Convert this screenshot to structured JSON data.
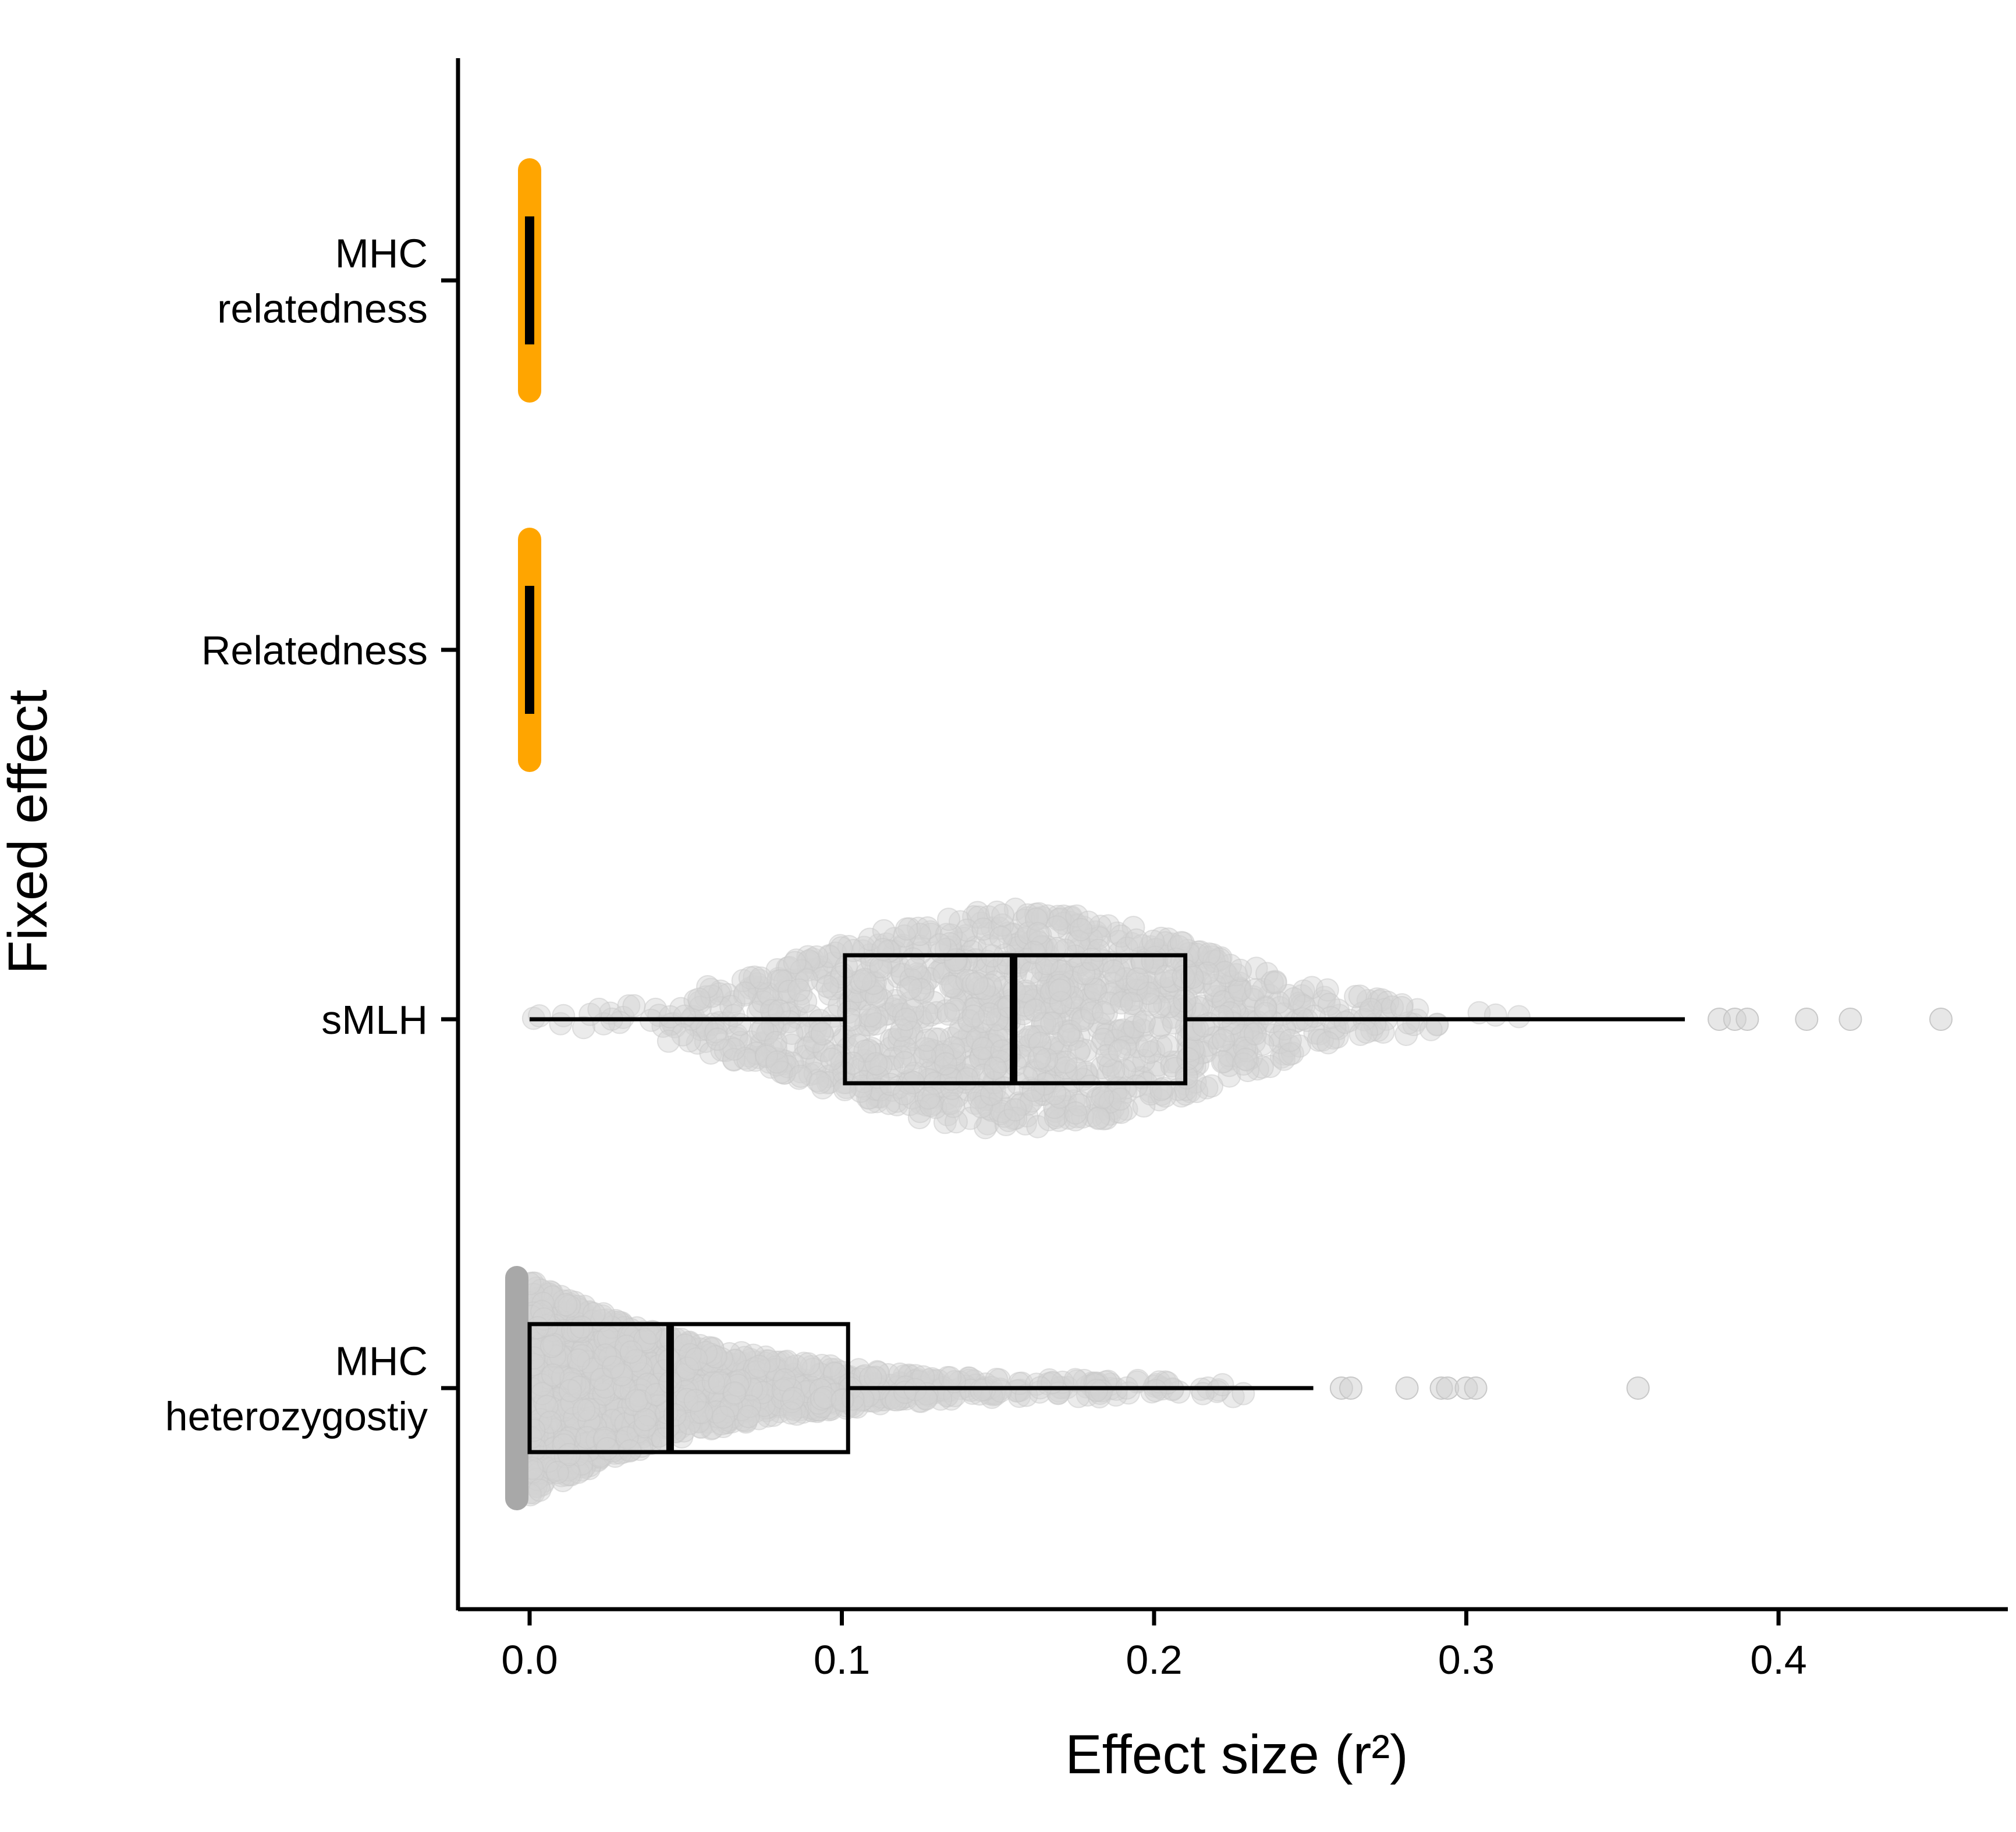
{
  "chart_data": {
    "type": "boxplot",
    "xlabel": "Effect size (r²)",
    "ylabel": "Fixed effect",
    "xlim": [
      -0.022,
      0.472
    ],
    "xticks": [
      "0.0",
      "0.1",
      "0.2",
      "0.3",
      "0.4"
    ],
    "grid": false,
    "categories": [
      {
        "label": [
          "MHC",
          "relatedness"
        ],
        "kind": "zero",
        "color": "#FFA500",
        "range": [
          0,
          0
        ]
      },
      {
        "label": [
          "Relatedness"
        ],
        "kind": "zero",
        "color": "#FFA500",
        "range": [
          0,
          0
        ]
      },
      {
        "label": [
          "sMLH"
        ],
        "kind": "box",
        "box": {
          "whisker_low": 0.0,
          "q1": 0.101,
          "median": 0.155,
          "q3": 0.21,
          "whisker_high": 0.37
        },
        "outliers": [
          0.381,
          0.386,
          0.39,
          0.409,
          0.423,
          0.452
        ],
        "points_color": "#D3D3D3"
      },
      {
        "label": [
          "MHC",
          "heterozygostiy"
        ],
        "kind": "box",
        "box": {
          "whisker_low": 0.0,
          "q1": 0.0,
          "median": 0.045,
          "q3": 0.102,
          "whisker_high": 0.251
        },
        "outliers": [
          0.26,
          0.263,
          0.281,
          0.292,
          0.294,
          0.3,
          0.303,
          0.355
        ],
        "points_color": "#D3D3D3"
      }
    ]
  }
}
